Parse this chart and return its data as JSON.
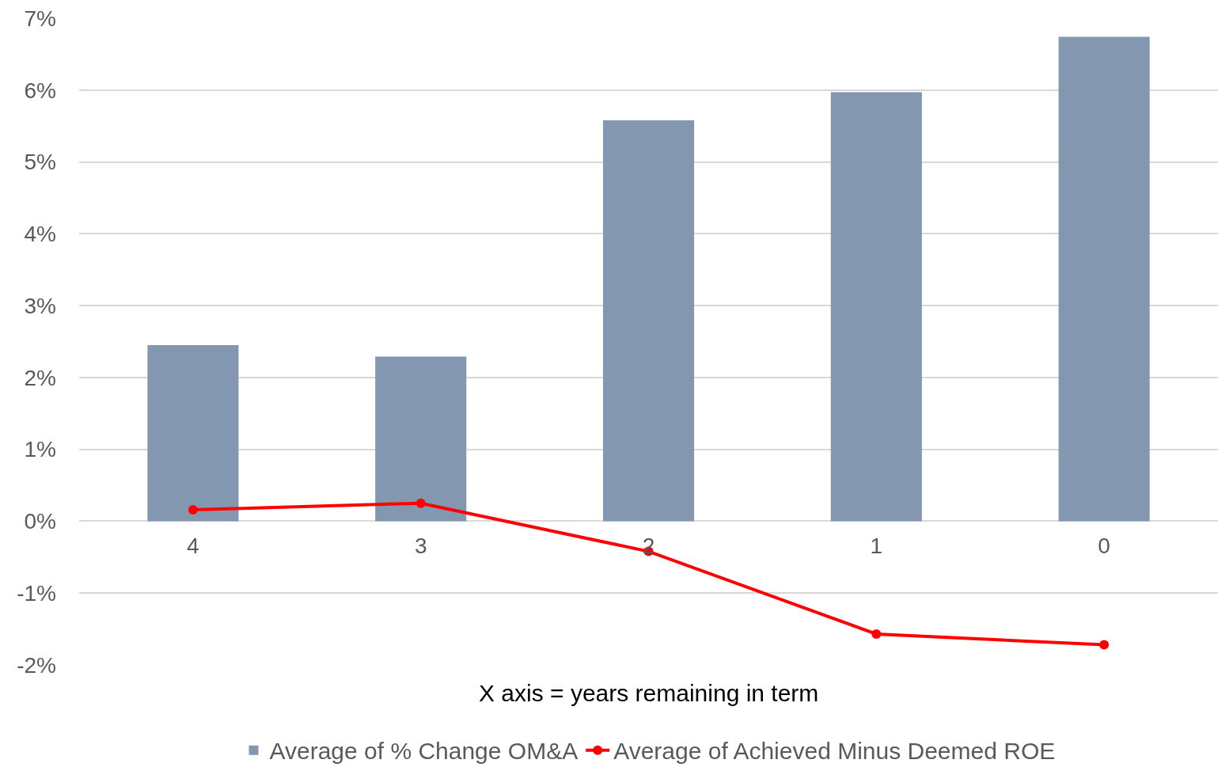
{
  "chart_data": {
    "type": "bar",
    "xlabel": "X axis = years remaining in term",
    "categories": [
      "4",
      "3",
      "2",
      "1",
      "0"
    ],
    "series": [
      {
        "name": "Average of % Change OM&A",
        "color": "#8497b0",
        "values": [
          2.45,
          2.29,
          5.58,
          5.97,
          6.74
        ]
      },
      {
        "name": "Average of Achieved Minus Deemed ROE",
        "type": "line",
        "color": "#ff0000",
        "marker": "circle",
        "values": [
          0.16,
          0.25,
          -0.42,
          -1.57,
          -1.72
        ]
      }
    ],
    "ylim": [
      -2,
      7
    ],
    "yticks": [
      {
        "value": -2,
        "label": "-2%"
      },
      {
        "value": -1,
        "label": "-1%"
      },
      {
        "value": 0,
        "label": "0%"
      },
      {
        "value": 1,
        "label": "1%"
      },
      {
        "value": 2,
        "label": "2%"
      },
      {
        "value": 3,
        "label": "3%"
      },
      {
        "value": 4,
        "label": "4%"
      },
      {
        "value": 5,
        "label": "5%"
      },
      {
        "value": 6,
        "label": "6%"
      },
      {
        "value": 7,
        "label": "7%"
      }
    ],
    "grid": "y",
    "legend": "bottom"
  }
}
